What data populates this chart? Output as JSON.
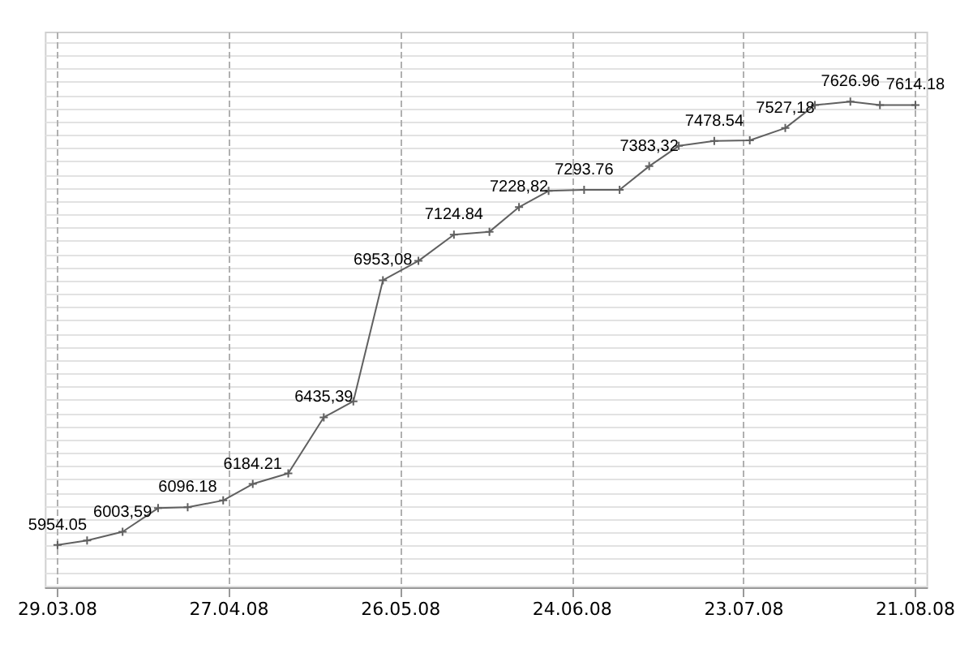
{
  "chart_data": {
    "type": "line",
    "x": [
      "2008-03-29",
      "2008-04-03",
      "2008-04-09",
      "2008-04-15",
      "2008-04-20",
      "2008-04-26",
      "2008-05-01",
      "2008-05-07",
      "2008-05-13",
      "2008-05-18",
      "2008-05-23",
      "2008-05-29",
      "2008-06-04",
      "2008-06-10",
      "2008-06-15",
      "2008-06-20",
      "2008-06-26",
      "2008-07-02",
      "2008-07-07",
      "2008-07-12",
      "2008-07-18",
      "2008-07-24",
      "2008-07-30",
      "2008-08-04",
      "2008-08-10",
      "2008-08-15",
      "2008-08-21"
    ],
    "series": [
      {
        "color": "#606060",
        "values": [
          5954.05,
          5971,
          6003.59,
          6093,
          6096.18,
          6122,
          6184.21,
          6224,
          6435.39,
          6496,
          6953.08,
          7026,
          7124.84,
          7136,
          7228.82,
          7290,
          7293.76,
          7294,
          7383.32,
          7460,
          7478.54,
          7481,
          7527.18,
          7614,
          7626.96,
          7614,
          7614.18
        ],
        "value_labels": [
          "5954.05",
          null,
          "6003,59",
          null,
          "6096.18",
          null,
          "6184.21",
          null,
          "6435,39",
          null,
          "6953,08",
          null,
          "7124.84",
          null,
          "7228,82",
          null,
          "7293.76",
          null,
          "7383,32",
          null,
          "7478.54",
          null,
          "7527,18",
          null,
          "7626.96",
          null,
          "7614.18"
        ]
      }
    ],
    "xlim": [
      "2008-03-27",
      "2008-08-23"
    ],
    "xticks": [
      {
        "value": "2008-03-29",
        "label": "29.03.08"
      },
      {
        "value": "2008-04-27",
        "label": "27.04.08"
      },
      {
        "value": "2008-05-26",
        "label": "26.05.08"
      },
      {
        "value": "2008-06-24",
        "label": "24.06.08"
      },
      {
        "value": "2008-07-23",
        "label": "23.07.08"
      },
      {
        "value": "2008-08-21",
        "label": "21.08.08"
      }
    ],
    "ylim": [
      5794,
      7888
    ],
    "yticks": [
      {
        "value": 5800,
        "label": null
      },
      {
        "value": 5850,
        "label": null
      },
      {
        "value": 5900,
        "label": null
      },
      {
        "value": 5950,
        "label": null
      },
      {
        "value": 6000,
        "label": null
      },
      {
        "value": 6050,
        "label": null
      },
      {
        "value": 6100,
        "label": null
      },
      {
        "value": 6150,
        "label": null
      },
      {
        "value": 6200,
        "label": null
      },
      {
        "value": 6250,
        "label": null
      },
      {
        "value": 6300,
        "label": null
      },
      {
        "value": 6350,
        "label": null
      },
      {
        "value": 6400,
        "label": null
      },
      {
        "value": 6450,
        "label": null
      },
      {
        "value": 6500,
        "label": null
      },
      {
        "value": 6550,
        "label": null
      },
      {
        "value": 6600,
        "label": null
      },
      {
        "value": 6650,
        "label": null
      },
      {
        "value": 6700,
        "label": null
      },
      {
        "value": 6750,
        "label": null
      },
      {
        "value": 6800,
        "label": null
      },
      {
        "value": 6850,
        "label": null
      },
      {
        "value": 6900,
        "label": null
      },
      {
        "value": 6950,
        "label": null
      },
      {
        "value": 7000,
        "label": null
      },
      {
        "value": 7050,
        "label": null
      },
      {
        "value": 7100,
        "label": null
      },
      {
        "value": 7150,
        "label": null
      },
      {
        "value": 7200,
        "label": null
      },
      {
        "value": 7250,
        "label": null
      },
      {
        "value": 7300,
        "label": null
      },
      {
        "value": 7350,
        "label": null
      },
      {
        "value": 7400,
        "label": null
      },
      {
        "value": 7450,
        "label": null
      },
      {
        "value": 7500,
        "label": null
      },
      {
        "value": 7550,
        "label": null
      },
      {
        "value": 7600,
        "label": null
      },
      {
        "value": 7650,
        "label": null
      },
      {
        "value": 7700,
        "label": null
      },
      {
        "value": 7750,
        "label": null
      },
      {
        "value": 7800,
        "label": null
      },
      {
        "value": 7850,
        "label": null
      }
    ],
    "tick_labels": "x",
    "grid": true,
    "marker": "cross",
    "line_style": "solid"
  }
}
